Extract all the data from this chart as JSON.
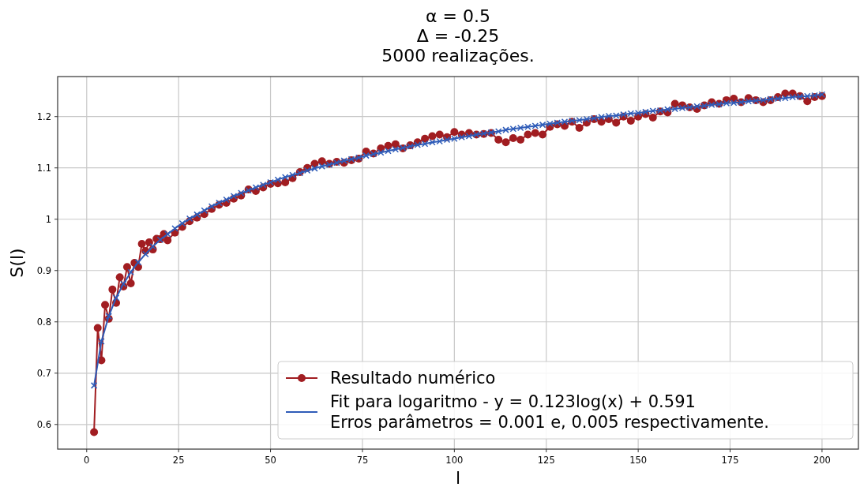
{
  "chart_data": {
    "type": "line",
    "title": "α = 0.5\nΔ = -0.25\n5000 realizações.",
    "xlabel": "l",
    "ylabel": "S(l)",
    "xlim": [
      -7.9,
      209.9
    ],
    "ylim": [
      0.552,
      1.278
    ],
    "xticks": [
      0,
      25,
      50,
      75,
      100,
      125,
      150,
      175,
      200
    ],
    "yticks": [
      0.6,
      0.7,
      0.8,
      0.9,
      1.0,
      1.1,
      1.2
    ],
    "grid": true,
    "legend": "bottom right",
    "series": [
      {
        "name": "Resultado numérico",
        "color": "#a11d21",
        "marker": "circle",
        "x": [
          2,
          3,
          4,
          5,
          6,
          7,
          8,
          9,
          10,
          11,
          12,
          13,
          14,
          15,
          16,
          17,
          18,
          19,
          20,
          21,
          22,
          24,
          26,
          28,
          30,
          32,
          34,
          36,
          38,
          40,
          42,
          44,
          46,
          48,
          50,
          52,
          54,
          56,
          58,
          60,
          62,
          64,
          66,
          68,
          70,
          72,
          74,
          76,
          78,
          80,
          82,
          84,
          86,
          88,
          90,
          92,
          94,
          96,
          98,
          100,
          102,
          104,
          106,
          108,
          110,
          112,
          114,
          116,
          118,
          120,
          122,
          124,
          126,
          128,
          130,
          132,
          134,
          136,
          138,
          140,
          142,
          144,
          146,
          148,
          150,
          152,
          154,
          156,
          158,
          160,
          162,
          164,
          166,
          168,
          170,
          172,
          174,
          176,
          178,
          180,
          182,
          184,
          186,
          188,
          190,
          192,
          194,
          196,
          198,
          200
        ],
        "values": [
          0.585,
          0.788,
          0.725,
          0.833,
          0.806,
          0.863,
          0.837,
          0.887,
          0.869,
          0.907,
          0.875,
          0.915,
          0.907,
          0.952,
          0.938,
          0.955,
          0.941,
          0.962,
          0.961,
          0.971,
          0.959,
          0.974,
          0.985,
          0.996,
          1.003,
          1.01,
          1.02,
          1.028,
          1.032,
          1.04,
          1.046,
          1.058,
          1.055,
          1.062,
          1.069,
          1.07,
          1.072,
          1.08,
          1.092,
          1.1,
          1.108,
          1.113,
          1.108,
          1.112,
          1.11,
          1.115,
          1.118,
          1.132,
          1.128,
          1.138,
          1.143,
          1.146,
          1.138,
          1.144,
          1.15,
          1.157,
          1.162,
          1.165,
          1.16,
          1.17,
          1.165,
          1.168,
          1.165,
          1.166,
          1.168,
          1.155,
          1.15,
          1.158,
          1.155,
          1.165,
          1.168,
          1.165,
          1.18,
          1.185,
          1.182,
          1.19,
          1.178,
          1.188,
          1.195,
          1.19,
          1.195,
          1.188,
          1.2,
          1.192,
          1.2,
          1.205,
          1.198,
          1.21,
          1.208,
          1.225,
          1.222,
          1.218,
          1.215,
          1.222,
          1.228,
          1.225,
          1.232,
          1.235,
          1.228,
          1.236,
          1.232,
          1.228,
          1.232,
          1.238,
          1.245,
          1.245,
          1.24,
          1.23,
          1.238,
          1.24
        ]
      },
      {
        "name": "Fit para logaritmo - y = 0.123log(x) + 0.591\nErros parâmetros = 0.001 e, 0.005 respectivamente.",
        "color": "#2f5cb8",
        "marker": "cross",
        "x": [
          2,
          4,
          6,
          8,
          10,
          12,
          14,
          16,
          18,
          20,
          22,
          24,
          26,
          28,
          30,
          32,
          34,
          36,
          38,
          40,
          42,
          44,
          46,
          48,
          50,
          52,
          54,
          56,
          58,
          60,
          62,
          64,
          66,
          68,
          70,
          72,
          74,
          76,
          78,
          80,
          82,
          84,
          86,
          88,
          90,
          92,
          94,
          96,
          98,
          100,
          102,
          104,
          106,
          108,
          110,
          112,
          114,
          116,
          118,
          120,
          122,
          124,
          126,
          128,
          130,
          132,
          134,
          136,
          138,
          140,
          142,
          144,
          146,
          148,
          150,
          152,
          154,
          156,
          158,
          160,
          162,
          164,
          166,
          168,
          170,
          172,
          174,
          176,
          178,
          180,
          182,
          184,
          186,
          188,
          190,
          192,
          194,
          196,
          198,
          200
        ],
        "values": [
          0.676,
          0.762,
          0.811,
          0.847,
          0.874,
          0.897,
          0.916,
          0.932,
          0.947,
          0.96,
          0.971,
          0.982,
          0.992,
          1.001,
          1.009,
          1.017,
          1.025,
          1.032,
          1.038,
          1.045,
          1.051,
          1.056,
          1.062,
          1.067,
          1.072,
          1.077,
          1.082,
          1.086,
          1.09,
          1.095,
          1.099,
          1.103,
          1.106,
          1.11,
          1.114,
          1.117,
          1.12,
          1.124,
          1.127,
          1.13,
          1.133,
          1.136,
          1.139,
          1.142,
          1.145,
          1.147,
          1.15,
          1.152,
          1.155,
          1.157,
          1.16,
          1.162,
          1.165,
          1.167,
          1.169,
          1.171,
          1.174,
          1.176,
          1.178,
          1.18,
          1.182,
          1.184,
          1.186,
          1.188,
          1.19,
          1.192,
          1.193,
          1.195,
          1.197,
          1.199,
          1.201,
          1.202,
          1.204,
          1.206,
          1.207,
          1.209,
          1.211,
          1.212,
          1.214,
          1.215,
          1.217,
          1.218,
          1.22,
          1.221,
          1.223,
          1.224,
          1.226,
          1.227,
          1.228,
          1.23,
          1.231,
          1.232,
          1.234,
          1.235,
          1.236,
          1.238,
          1.239,
          1.24,
          1.241,
          1.243
        ]
      }
    ]
  }
}
